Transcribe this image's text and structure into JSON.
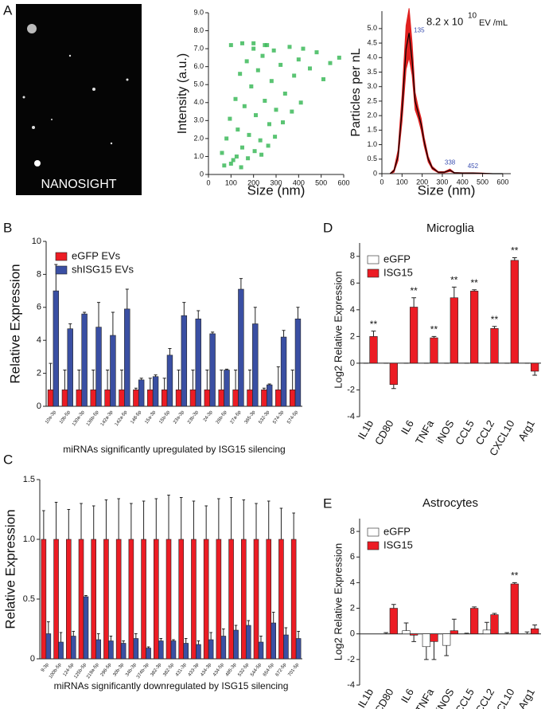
{
  "panels": [
    "A",
    "B",
    "C",
    "D",
    "E"
  ],
  "nanosight_image": {
    "label": "NANOSIGHT"
  },
  "chart_data": [
    {
      "type": "scatter",
      "xlabel": "Size (nm)",
      "ylabel": "Intensity (a.u.)",
      "color": "#3dba5a",
      "x": [
        60,
        80,
        95,
        110,
        120,
        130,
        140,
        150,
        160,
        170,
        180,
        190,
        200,
        210,
        220,
        230,
        240,
        250,
        260,
        270,
        280,
        290,
        300,
        320,
        340,
        360,
        380,
        400,
        420,
        450,
        480,
        510,
        540,
        580,
        70,
        100,
        125,
        145,
        175,
        205,
        235,
        265,
        295,
        330,
        370,
        410,
        100,
        150,
        200,
        250
      ],
      "y": [
        1.2,
        2.0,
        3.1,
        0.8,
        4.2,
        2.5,
        5.6,
        1.5,
        3.8,
        6.3,
        2.2,
        4.9,
        7.0,
        3.3,
        5.8,
        1.9,
        6.6,
        4.1,
        7.2,
        2.8,
        5.2,
        6.9,
        3.6,
        6.1,
        4.5,
        7.1,
        5.5,
        6.4,
        7.0,
        5.9,
        6.8,
        5.3,
        6.2,
        6.5,
        0.5,
        0.6,
        1.0,
        0.4,
        0.9,
        1.3,
        1.1,
        1.6,
        2.1,
        2.9,
        3.5,
        4.0,
        7.2,
        7.3,
        7.3,
        7.2
      ],
      "xlim": [
        0,
        600
      ],
      "xticks": [
        0,
        100,
        200,
        300,
        400,
        500,
        600
      ],
      "ylim": [
        0,
        9
      ],
      "yticks": [
        0,
        {
          "value": 1,
          "label": "1.0"
        },
        {
          "value": 2,
          "label": "2.0"
        },
        {
          "value": 3,
          "label": "3.0"
        },
        {
          "value": 4,
          "label": "4.0"
        },
        {
          "value": 5,
          "label": "5.0"
        },
        {
          "value": 6,
          "label": "6.0"
        },
        {
          "value": 7,
          "label": "7.0"
        },
        {
          "value": 8,
          "label": "8.0"
        },
        {
          "value": 9,
          "label": "9.0"
        }
      ]
    },
    {
      "type": "line",
      "xlabel": "Size (nm)",
      "ylabel": "Particles per nL",
      "annotation": {
        "base": "8.2 x 10",
        "exponent": "10",
        "unit": "EV /mL"
      },
      "x": [
        40,
        60,
        80,
        100,
        120,
        135,
        150,
        165,
        180,
        195,
        210,
        230,
        250,
        280,
        310,
        338,
        360,
        400,
        452,
        500,
        550,
        600
      ],
      "series": [
        {
          "color": "#000000",
          "band_color": "#e0201f",
          "values": [
            0,
            0.1,
            0.6,
            2.2,
            4.3,
            4.85,
            3.9,
            2.5,
            2.1,
            1.7,
            1.1,
            0.5,
            0.2,
            0.05,
            0.05,
            0.12,
            0.03,
            0.02,
            0.02,
            0.01,
            0,
            0
          ],
          "band_low": [
            0,
            0.05,
            0.45,
            1.8,
            3.6,
            4.0,
            3.4,
            2.2,
            1.9,
            1.5,
            0.95,
            0.4,
            0.15,
            0.03,
            0.03,
            0.08,
            0.02,
            0.01,
            0.01,
            0,
            0,
            0
          ],
          "band_high": [
            0,
            0.15,
            0.8,
            2.7,
            5.1,
            5.7,
            4.5,
            2.8,
            2.3,
            1.9,
            1.25,
            0.6,
            0.25,
            0.07,
            0.07,
            0.16,
            0.04,
            0.03,
            0.03,
            0.02,
            0,
            0
          ]
        }
      ],
      "peaks": [
        135,
        338,
        452
      ],
      "peak_color": "#3b4fb0",
      "xlim": [
        0,
        640
      ],
      "xticks": [
        0,
        100,
        200,
        300,
        400,
        500,
        600
      ],
      "ylim": [
        0,
        5.6
      ],
      "yticks": [
        0,
        0.5,
        {
          "value": 1,
          "label": "1.0"
        },
        1.5,
        {
          "value": 2,
          "label": "2.0"
        },
        2.5,
        {
          "value": 3,
          "label": "3.0"
        },
        3.5,
        {
          "value": 4,
          "label": "4.0"
        },
        4.5,
        {
          "value": 5,
          "label": "5.0"
        }
      ]
    },
    {
      "type": "bar",
      "ylabel": "Relative Expression",
      "xlabel": "miRNAs significantly upregulated by ISG15 silencing",
      "categories": [
        "10a-3p",
        "10b-5p",
        "130a-3p",
        "136b-5p",
        "142a-3p",
        "142a-5p",
        "148-5p",
        "15a-3p",
        "15b-5p",
        "23a-3p",
        "23b-3p",
        "24-3p",
        "26b-5p",
        "27a-5p",
        "365-3p",
        "532-3p",
        "574-3p",
        "574-5p"
      ],
      "series": [
        {
          "name": "eGFP EVs",
          "color": "#ec1c24",
          "values": [
            1,
            1,
            1,
            1,
            1,
            1,
            1,
            1,
            1,
            1,
            1,
            1,
            1,
            1,
            1,
            1,
            1,
            1
          ],
          "errors": [
            1.6,
            1.2,
            1.2,
            1.2,
            1.2,
            1.2,
            0.1,
            0.7,
            0.7,
            1.2,
            1.2,
            1.2,
            1.2,
            1.2,
            1.2,
            0.1,
            1.4,
            1.2
          ]
        },
        {
          "name": "shISG15 EVs",
          "color": "#3a4fa3",
          "values": [
            7.0,
            4.7,
            5.6,
            4.8,
            4.3,
            5.9,
            1.6,
            1.8,
            3.1,
            5.5,
            5.3,
            4.4,
            2.2,
            7.1,
            5.0,
            1.3,
            4.2,
            5.3
          ],
          "errors": [
            1.6,
            0.3,
            0.1,
            1.5,
            1.4,
            1.2,
            0.1,
            0.1,
            0.4,
            0.8,
            0.5,
            0.1,
            0.05,
            0.65,
            1.0,
            0.05,
            0.4,
            0.7
          ]
        }
      ],
      "ylim": [
        0,
        10
      ],
      "yticks": [
        0,
        2,
        4,
        6,
        8,
        10
      ]
    },
    {
      "type": "bar",
      "ylabel": "Relative Expression",
      "xlabel": "miRNAs significantly downregulated by ISG15 silencing",
      "categories": [
        "9-3p",
        "100b-5p",
        "124-5p",
        "125b-5p",
        "219a-5p",
        "296-5p",
        "30b-3p",
        "34b-3p",
        "374b-3p",
        "382-3p",
        "382-5p",
        "431-3p",
        "433-3p",
        "434-3p",
        "434-5p",
        "485-3p",
        "532-5p",
        "544-5p",
        "654-5p",
        "672-5p",
        "701-5p"
      ],
      "series": [
        {
          "name": "eGFP EVs",
          "color": "#ec1c24",
          "values": [
            1,
            1,
            1,
            1,
            1,
            1,
            1,
            1,
            1,
            1,
            1,
            1,
            1,
            1,
            1,
            1,
            1,
            1,
            1,
            1,
            1
          ],
          "errors": [
            0.24,
            0.31,
            0.25,
            0.3,
            0.28,
            0.33,
            0.34,
            0.3,
            0.32,
            0.34,
            0.37,
            0.35,
            0.32,
            0.28,
            0.34,
            0.35,
            0.33,
            0.3,
            0.32,
            0.26,
            0.22
          ]
        },
        {
          "name": "shISG15 EVs",
          "color": "#3a4fa3",
          "values": [
            0.21,
            0.14,
            0.19,
            0.52,
            0.16,
            0.15,
            0.13,
            0.17,
            0.09,
            0.15,
            0.15,
            0.13,
            0.12,
            0.16,
            0.19,
            0.24,
            0.28,
            0.14,
            0.3,
            0.2,
            0.17
          ],
          "errors": [
            0.1,
            0.08,
            0.04,
            0.01,
            0.05,
            0.04,
            0.02,
            0.04,
            0.01,
            0.02,
            0.01,
            0.04,
            0.03,
            0.06,
            0.06,
            0.04,
            0.04,
            0.05,
            0.09,
            0.06,
            0.06
          ]
        }
      ],
      "ylim": [
        0,
        1.5
      ],
      "yticks": [
        0,
        0.5,
        {
          "value": 1,
          "label": "1.0"
        },
        1.5
      ]
    },
    {
      "type": "bar",
      "title": "Microglia",
      "ylabel": "Log2 Relative Expression",
      "categories": [
        "IL1b",
        "CD80",
        "IL6",
        "TNFa",
        "iNOS",
        "CCL5",
        "CCL2",
        "CXCL10",
        "Arg1"
      ],
      "series": [
        {
          "name": "eGFP",
          "color": "#ffffff",
          "values": [
            0,
            0,
            0,
            0,
            0,
            0,
            0,
            0,
            0
          ],
          "errors": [
            0,
            0,
            0,
            0,
            0,
            0,
            0,
            0,
            0
          ]
        },
        {
          "name": "ISG15",
          "color": "#ec1c24",
          "values": [
            2.0,
            -1.6,
            4.2,
            1.9,
            4.9,
            5.4,
            2.6,
            7.7,
            -0.6
          ],
          "errors": [
            0.4,
            0.3,
            0.7,
            0.1,
            0.8,
            0.1,
            0.15,
            0.2,
            0.3
          ]
        }
      ],
      "significance": [
        "**",
        null,
        "**",
        "**",
        "**",
        "**",
        "**",
        "**",
        null
      ],
      "ylim": [
        -4,
        9
      ],
      "yticks": [
        -4,
        -2,
        0,
        2,
        4,
        6,
        8
      ]
    },
    {
      "type": "bar",
      "title": "Astrocytes",
      "ylabel": "Log2 Relative Expression",
      "categories": [
        "IL1b",
        "CD80",
        "IL6",
        "TNFa",
        "iNOS",
        "CCL5",
        "CCL2",
        "CXCL10",
        "Arg1"
      ],
      "series": [
        {
          "name": "eGFP",
          "color": "#ffffff",
          "values": [
            null,
            0,
            0.25,
            -1.0,
            -0.9,
            0,
            0.3,
            0,
            0
          ],
          "errors": [
            null,
            0.1,
            0.6,
            1.0,
            0.8,
            0.05,
            0.6,
            0.1,
            0.15
          ]
        },
        {
          "name": "ISG15",
          "color": "#ec1c24",
          "values": [
            null,
            2.0,
            -0.1,
            -0.6,
            0.25,
            2.0,
            1.5,
            3.9,
            0.4
          ],
          "errors": [
            null,
            0.3,
            0.5,
            1.4,
            0.9,
            0.1,
            0.1,
            0.1,
            0.3
          ]
        }
      ],
      "significance": [
        null,
        null,
        null,
        null,
        null,
        null,
        null,
        "**",
        null
      ],
      "ylim": [
        -4,
        9
      ],
      "yticks": [
        -4,
        -2,
        0,
        2,
        4,
        6,
        8
      ]
    }
  ]
}
